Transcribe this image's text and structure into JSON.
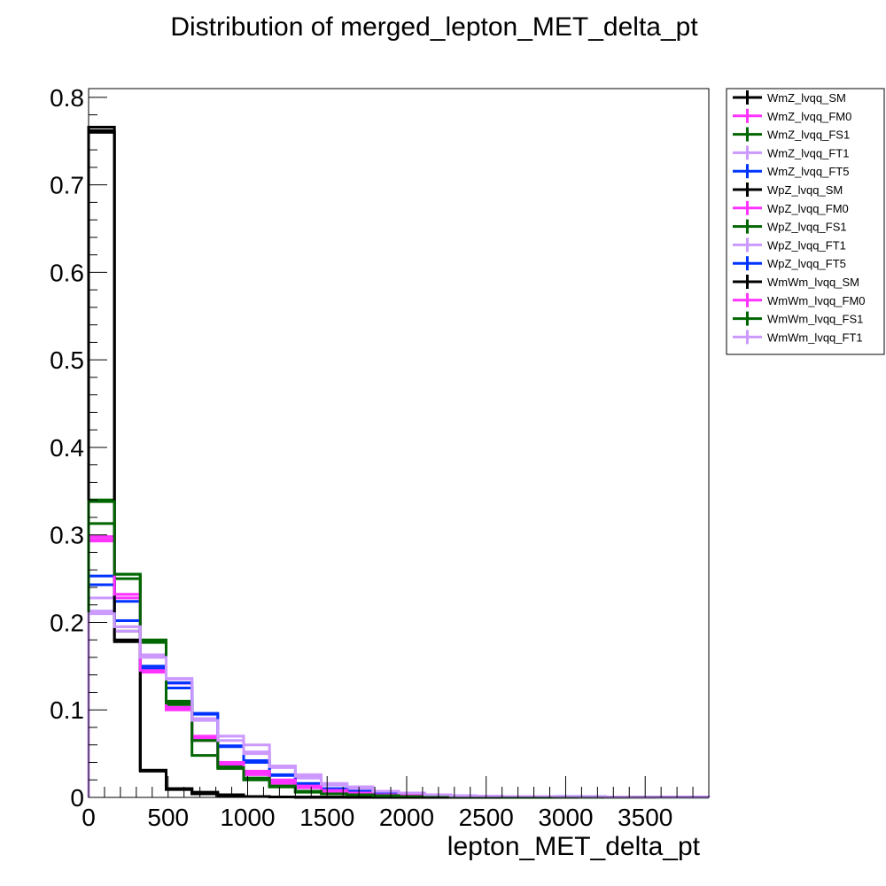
{
  "chart_data": {
    "type": "line",
    "title": "Distribution of merged_lepton_MET_delta_pt",
    "xlabel": "lepton_MET_delta_pt",
    "ylabel": "",
    "xlim": [
      0,
      3900
    ],
    "ylim": [
      0,
      0.81
    ],
    "x_ticks": [
      0,
      500,
      1000,
      1500,
      2000,
      2500,
      3000,
      3500
    ],
    "x_tick_labels": [
      "0",
      "500",
      "1000",
      "1500",
      "2000",
      "2500",
      "3000",
      "3500"
    ],
    "y_ticks": [
      0,
      0.1,
      0.2,
      0.3,
      0.4,
      0.5,
      0.6,
      0.7,
      0.8
    ],
    "y_tick_labels": [
      "0",
      "0.1",
      "0.2",
      "0.3",
      "0.4",
      "0.5",
      "0.6",
      "0.7",
      "0.8"
    ],
    "grid": false,
    "legend_position": "top-right outside",
    "bin_edges": [
      0,
      162.5,
      325,
      487.5,
      650,
      812.5,
      975,
      1137.5,
      1300,
      1462.5,
      1625,
      1787.5,
      1950,
      2112.5,
      2275,
      2437.5,
      2600,
      2762.5,
      2925,
      3087.5,
      3250,
      3412.5,
      3575,
      3737.5,
      3900
    ],
    "series": [
      {
        "name": "WmZ_lvqq_SM",
        "color": "#000000",
        "values": [
          0.762,
          0.19,
          0.031,
          0.01,
          0.004,
          0.002,
          0.001,
          0.0005,
          0.0003,
          0.0002,
          0.0001,
          0,
          0,
          0,
          0,
          0,
          0,
          0,
          0,
          0,
          0,
          0,
          0,
          0
        ]
      },
      {
        "name": "WmZ_lvqq_FM0",
        "color": "#ff33ff",
        "values": [
          0.298,
          0.232,
          0.148,
          0.103,
          0.068,
          0.04,
          0.028,
          0.018,
          0.012,
          0.008,
          0.005,
          0.003,
          0.002,
          0.0015,
          0.001,
          0.001,
          0.0008,
          0.0006,
          0.0005,
          0.0004,
          0.0003,
          0.0002,
          0.0002,
          0.0001
        ]
      },
      {
        "name": "WmZ_lvqq_FS1",
        "color": "#006600",
        "values": [
          0.34,
          0.25,
          0.18,
          0.11,
          0.065,
          0.035,
          0.022,
          0.012,
          0.007,
          0.004,
          0.003,
          0.002,
          0.001,
          0.001,
          0.0005,
          0.0005,
          0.0003,
          0.0002,
          0.0002,
          0.0001,
          0.0001,
          0.0001,
          0,
          0
        ]
      },
      {
        "name": "WmZ_lvqq_FT1",
        "color": "#cc99ff",
        "values": [
          0.228,
          0.195,
          0.16,
          0.13,
          0.09,
          0.07,
          0.052,
          0.034,
          0.022,
          0.014,
          0.01,
          0.006,
          0.004,
          0.003,
          0.002,
          0.0015,
          0.001,
          0.001,
          0.0008,
          0.0006,
          0.0005,
          0.0004,
          0.0003,
          0.0002
        ]
      },
      {
        "name": "WmZ_lvqq_FT5",
        "color": "#0033ff",
        "values": [
          0.253,
          0.224,
          0.15,
          0.125,
          0.095,
          0.058,
          0.042,
          0.025,
          0.015,
          0.01,
          0.007,
          0.005,
          0.004,
          0.003,
          0.002,
          0.0015,
          0.001,
          0.001,
          0.0008,
          0.0006,
          0.0005,
          0.0005,
          0.0003,
          0.0002
        ]
      },
      {
        "name": "WpZ_lvqq_SM",
        "color": "#000000",
        "values": [
          0.766,
          0.178,
          0.03,
          0.009,
          0.004,
          0.002,
          0.001,
          0.0005,
          0.0003,
          0.0002,
          0.0001,
          0,
          0,
          0,
          0,
          0,
          0,
          0,
          0,
          0,
          0,
          0,
          0,
          0
        ]
      },
      {
        "name": "WpZ_lvqq_FM0",
        "color": "#ff33ff",
        "values": [
          0.293,
          0.228,
          0.143,
          0.1,
          0.065,
          0.038,
          0.026,
          0.016,
          0.011,
          0.007,
          0.005,
          0.003,
          0.002,
          0.0015,
          0.001,
          0.001,
          0.0008,
          0.0006,
          0.0005,
          0.0004,
          0.0003,
          0.0002,
          0.0002,
          0.0001
        ]
      },
      {
        "name": "WpZ_lvqq_FS1",
        "color": "#006600",
        "values": [
          0.313,
          0.255,
          0.177,
          0.106,
          0.048,
          0.033,
          0.02,
          0.012,
          0.006,
          0.004,
          0.003,
          0.002,
          0.001,
          0.001,
          0.0005,
          0.0005,
          0.0003,
          0.0002,
          0.0002,
          0.0001,
          0.0001,
          0.0001,
          0,
          0
        ]
      },
      {
        "name": "WpZ_lvqq_FT1",
        "color": "#cc99ff",
        "values": [
          0.213,
          0.19,
          0.163,
          0.136,
          0.09,
          0.07,
          0.06,
          0.036,
          0.026,
          0.016,
          0.012,
          0.007,
          0.005,
          0.003,
          0.002,
          0.0015,
          0.001,
          0.001,
          0.0008,
          0.0006,
          0.0005,
          0.0004,
          0.0003,
          0.0002
        ]
      },
      {
        "name": "WpZ_lvqq_FT5",
        "color": "#0033ff",
        "values": [
          0.243,
          0.202,
          0.147,
          0.131,
          0.096,
          0.059,
          0.04,
          0.026,
          0.016,
          0.01,
          0.007,
          0.005,
          0.004,
          0.003,
          0.002,
          0.0015,
          0.001,
          0.001,
          0.0008,
          0.0006,
          0.0005,
          0.0005,
          0.0003,
          0.0002
        ]
      },
      {
        "name": "WmWm_lvqq_SM",
        "color": "#000000",
        "values": [
          0.76,
          0.18,
          0.031,
          0.01,
          0.006,
          0.003,
          0.001,
          0.0005,
          0.0003,
          0.0002,
          0.0001,
          0,
          0,
          0,
          0,
          0,
          0,
          0,
          0,
          0,
          0,
          0,
          0,
          0
        ]
      },
      {
        "name": "WmWm_lvqq_FM0",
        "color": "#ff33ff",
        "values": [
          0.295,
          0.232,
          0.145,
          0.102,
          0.07,
          0.04,
          0.03,
          0.02,
          0.013,
          0.008,
          0.005,
          0.003,
          0.002,
          0.0015,
          0.001,
          0.001,
          0.0008,
          0.0006,
          0.0005,
          0.0004,
          0.0003,
          0.0002,
          0.0002,
          0.0001
        ]
      },
      {
        "name": "WmWm_lvqq_FS1",
        "color": "#006600",
        "values": [
          0.338,
          0.255,
          0.178,
          0.108,
          0.065,
          0.034,
          0.022,
          0.013,
          0.007,
          0.004,
          0.003,
          0.002,
          0.001,
          0.001,
          0.0005,
          0.0005,
          0.0003,
          0.0002,
          0.0002,
          0.0001,
          0.0001,
          0.0001,
          0,
          0
        ]
      },
      {
        "name": "WmWm_lvqq_FT1",
        "color": "#cc99ff",
        "values": [
          0.21,
          0.195,
          0.16,
          0.135,
          0.088,
          0.065,
          0.05,
          0.035,
          0.024,
          0.015,
          0.012,
          0.007,
          0.005,
          0.003,
          0.002,
          0.0015,
          0.001,
          0.001,
          0.0008,
          0.0006,
          0.0005,
          0.0004,
          0.0003,
          0.0002
        ]
      }
    ]
  }
}
